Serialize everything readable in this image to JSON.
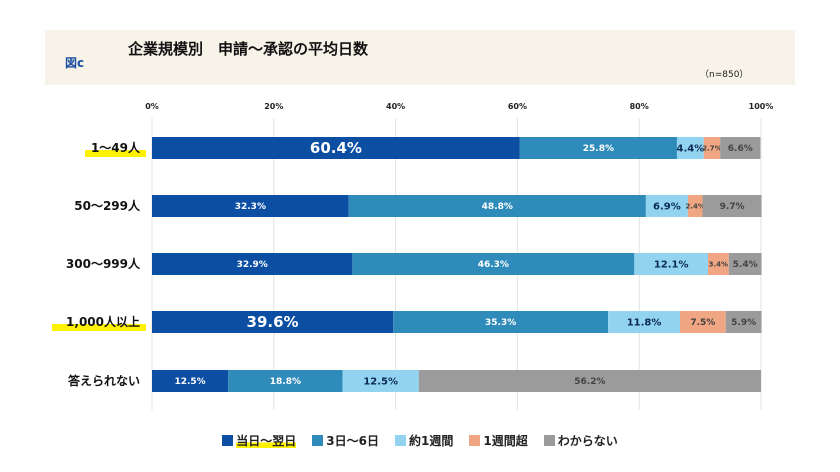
{
  "header": {
    "figure_label": "図c",
    "title": "企業規模別　申請～承認の平均日数",
    "n": "（n=850）"
  },
  "chart_data": {
    "type": "bar",
    "orientation": "horizontal",
    "stacked": true,
    "xlim": [
      0,
      100
    ],
    "xticks": [
      "0%",
      "20%",
      "40%",
      "60%",
      "80%",
      "100%"
    ],
    "grid": true,
    "legend": "bottom",
    "categories": [
      "1～49人",
      "50～299人",
      "300～999人",
      "1,000人以上",
      "答えられない"
    ],
    "highlighted_categories": [
      "1～49人",
      "1,000人以上"
    ],
    "series": [
      {
        "name": "当日～翌日",
        "color": "#0b4ea2",
        "values": [
          60.4,
          32.3,
          32.9,
          39.6,
          12.5
        ]
      },
      {
        "name": "3日～6日",
        "color": "#2f8bb9",
        "values": [
          25.8,
          48.8,
          46.3,
          35.3,
          18.8
        ]
      },
      {
        "name": "約1週間",
        "color": "#92d4f0",
        "values": [
          4.4,
          6.9,
          12.1,
          11.8,
          12.5
        ]
      },
      {
        "name": "1週間超",
        "color": "#f0a583",
        "values": [
          2.7,
          2.4,
          3.4,
          7.5,
          0
        ]
      },
      {
        "name": "わからない",
        "color": "#9b9b9b",
        "values": [
          6.6,
          9.7,
          5.4,
          5.9,
          56.2
        ]
      }
    ]
  }
}
